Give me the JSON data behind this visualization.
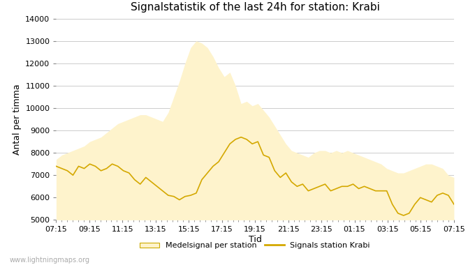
{
  "title": "Signalstatistik of the last 24h for station: Krabi",
  "xlabel": "Tid",
  "ylabel": "Antal per timma",
  "ylim": [
    5000,
    14000
  ],
  "yticks": [
    5000,
    6000,
    7000,
    8000,
    9000,
    10000,
    11000,
    12000,
    13000,
    14000
  ],
  "xtick_labels": [
    "07:15",
    "09:15",
    "11:15",
    "13:15",
    "15:15",
    "17:15",
    "19:15",
    "21:15",
    "23:15",
    "01:15",
    "03:15",
    "05:15",
    "07:15"
  ],
  "background_color": "#ffffff",
  "fill_color": "#fef3cc",
  "line_color": "#d4a800",
  "title_fontsize": 11,
  "watermark": "www.lightningmaps.org",
  "fill_y": [
    7700,
    7900,
    8000,
    8100,
    8200,
    8300,
    8500,
    8600,
    8700,
    8900,
    9100,
    9300,
    9400,
    9500,
    9600,
    9700,
    9700,
    9600,
    9500,
    9400,
    9800,
    10500,
    11200,
    12000,
    12700,
    13000,
    12900,
    12700,
    12300,
    11800,
    11400,
    11600,
    11000,
    10200,
    10300,
    10100,
    10200,
    9900,
    9600,
    9200,
    8800,
    8400,
    8100,
    8000,
    7900,
    7800,
    8000,
    8100,
    8100,
    8000,
    8100,
    8000,
    8100,
    8000,
    7900,
    7800,
    7700,
    7600,
    7500,
    7300,
    7200,
    7100,
    7100,
    7200,
    7300,
    7400,
    7500,
    7500,
    7400,
    7300,
    7000,
    6900
  ],
  "line_y": [
    7400,
    7300,
    7200,
    7000,
    7400,
    7300,
    7500,
    7400,
    7200,
    7300,
    7500,
    7400,
    7200,
    7100,
    6800,
    6600,
    6900,
    6700,
    6500,
    6300,
    6100,
    6050,
    5900,
    6050,
    6100,
    6200,
    6800,
    7100,
    7400,
    7600,
    8000,
    8400,
    8600,
    8700,
    8600,
    8400,
    8500,
    7900,
    7800,
    7200,
    6900,
    7100,
    6700,
    6500,
    6600,
    6300,
    6400,
    6500,
    6600,
    6300,
    6400,
    6500,
    6500,
    6600,
    6400,
    6500,
    6400,
    6300,
    6300,
    6300,
    5700,
    5300,
    5200,
    5300,
    5700,
    6000,
    5900,
    5800,
    6100,
    6200,
    6100,
    5700
  ]
}
